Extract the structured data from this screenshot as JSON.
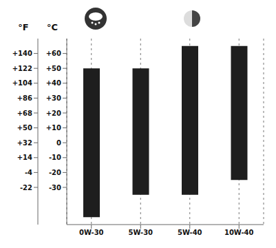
{
  "chart_data": {
    "type": "bar",
    "categories": [
      "0W-30",
      "5W-30",
      "5W-40",
      "10W-40"
    ],
    "values": [
      [
        -50,
        50
      ],
      [
        -35,
        50
      ],
      [
        -35,
        65
      ],
      [
        -25,
        65
      ]
    ],
    "color": "#1e1e1e",
    "ylabel": "°C",
    "ylim": [
      -55,
      70
    ],
    "yticks": [
      {
        "value": 60,
        "label": "+60"
      },
      {
        "value": 50,
        "label": "+50"
      },
      {
        "value": 40,
        "label": "+40"
      },
      {
        "value": 30,
        "label": "+30"
      },
      {
        "value": 20,
        "label": "+20"
      },
      {
        "value": 10,
        "label": "+10"
      },
      0,
      -10,
      -20,
      -30
    ],
    "y2label": "°F",
    "y2lim": [
      -67,
      158
    ],
    "y2ticks": [
      {
        "value": 140,
        "label": "+140"
      },
      {
        "value": 122,
        "label": "+122"
      },
      {
        "value": 104,
        "label": "+104"
      },
      {
        "value": 86,
        "label": "+86"
      },
      {
        "value": 68,
        "label": "+68"
      },
      {
        "value": 50,
        "label": "+50"
      },
      {
        "value": 32,
        "label": "+32"
      },
      {
        "value": 14,
        "label": "+14"
      },
      -4,
      -22
    ],
    "grid": true
  }
}
